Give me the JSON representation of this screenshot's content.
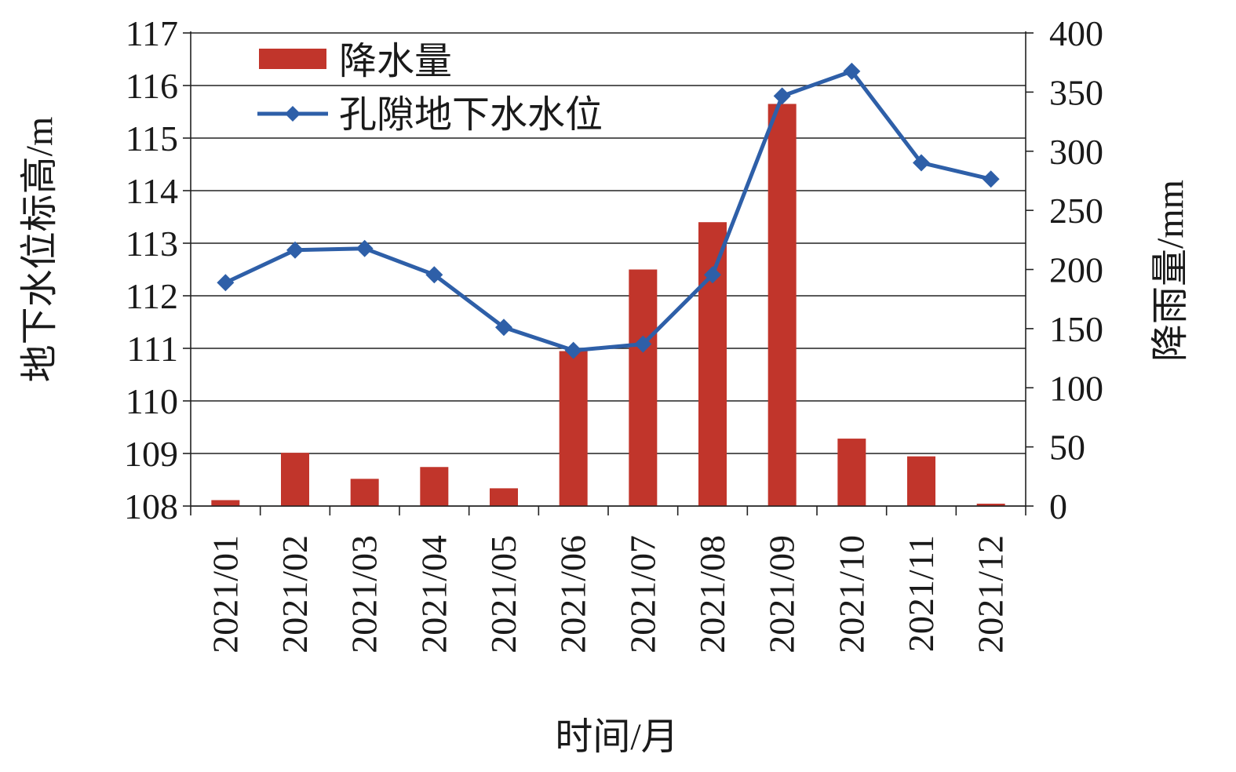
{
  "chart_data": {
    "type": "bar+line",
    "categories": [
      "2021/01",
      "2021/02",
      "2021/03",
      "2021/04",
      "2021/05",
      "2021/06",
      "2021/07",
      "2021/08",
      "2021/09",
      "2021/10",
      "2021/11",
      "2021/12"
    ],
    "series": [
      {
        "name": "降水量",
        "type": "bar",
        "axis": "right",
        "color": "#c1352b",
        "values": [
          5,
          45,
          23,
          33,
          15,
          131,
          200,
          240,
          340,
          57,
          42,
          2
        ]
      },
      {
        "name": "孔隙地下水水位",
        "type": "line",
        "axis": "left",
        "color": "#2e5fa8",
        "marker": "diamond",
        "values": [
          112.25,
          112.87,
          112.9,
          112.4,
          111.4,
          110.96,
          111.08,
          112.4,
          115.8,
          116.27,
          114.53,
          114.22
        ]
      }
    ],
    "y_left": {
      "label": "地下水位标高/m",
      "ylim": [
        108,
        117
      ],
      "ticks": [
        "108",
        "109",
        "110",
        "111",
        "112",
        "113",
        "114",
        "115",
        "116",
        "117"
      ]
    },
    "y_right": {
      "label": "降雨量/mm",
      "ylim": [
        0,
        400
      ],
      "ticks": [
        "0",
        "50",
        "100",
        "150",
        "200",
        "250",
        "300",
        "350",
        "400"
      ]
    },
    "xlabel": "时间/月",
    "grid": "horizontal",
    "legend_position": "top-left"
  }
}
